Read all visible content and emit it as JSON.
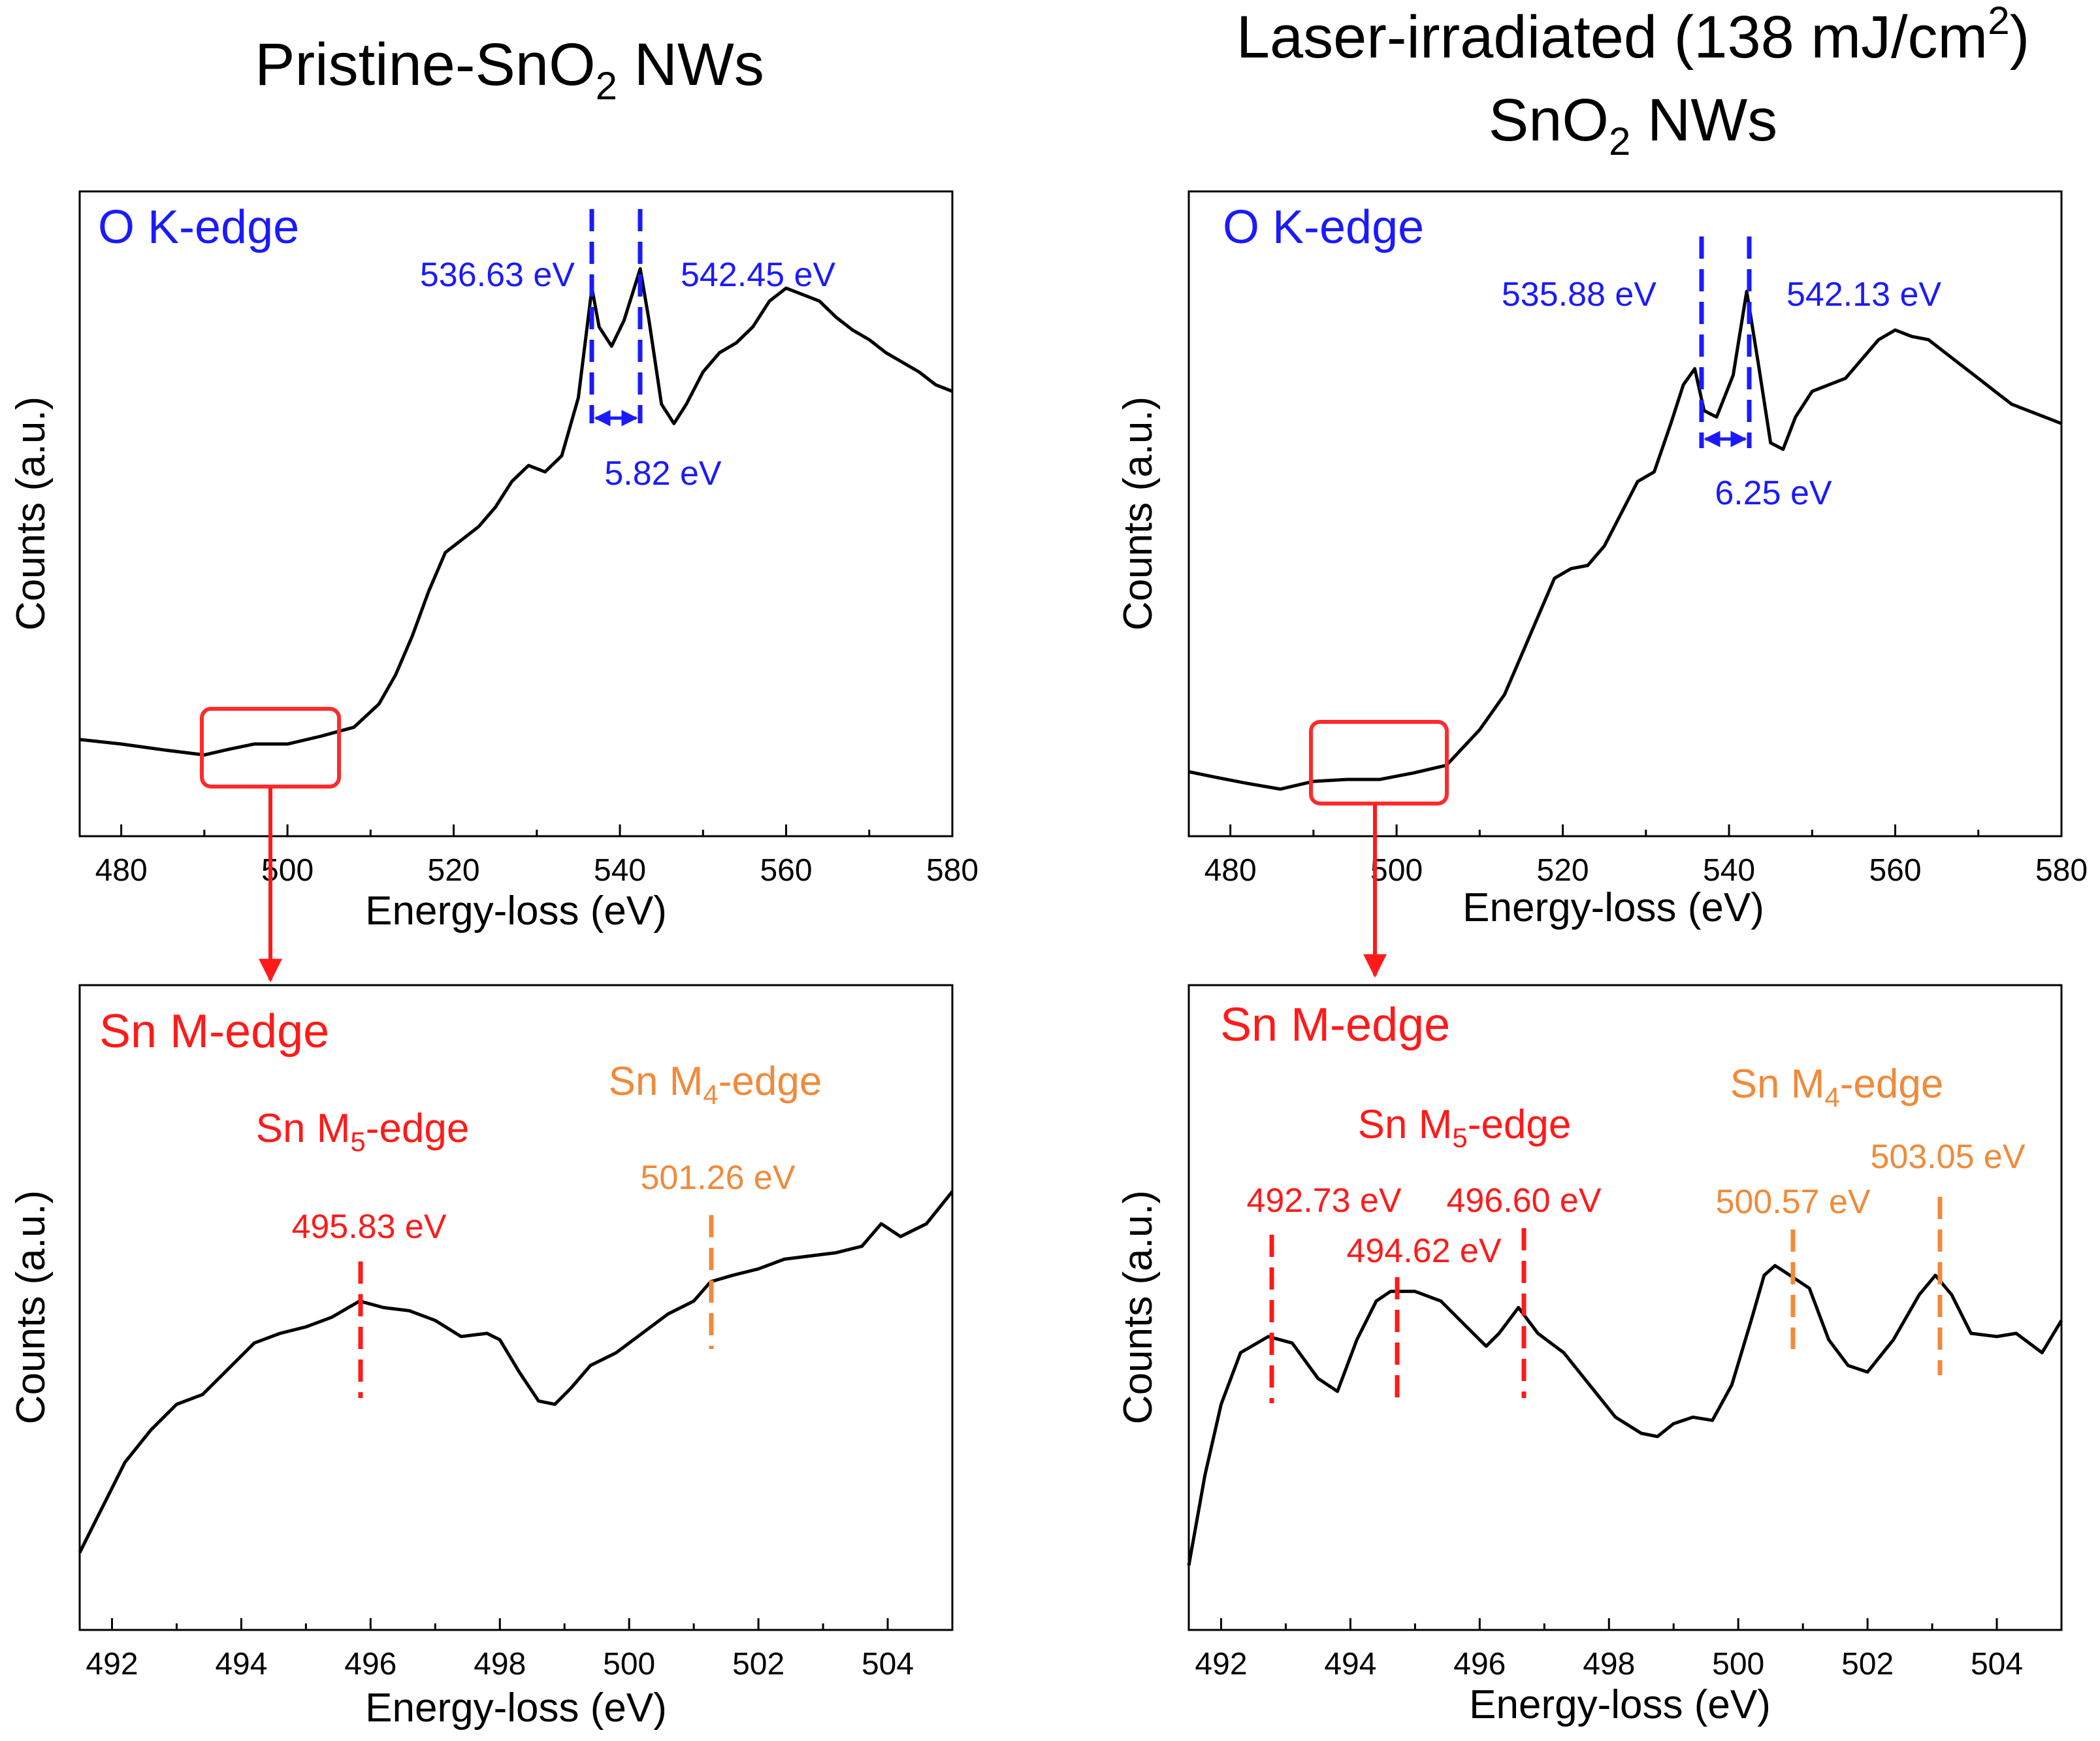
{
  "colors": {
    "blue": "#1a1aff",
    "red": "#ff1a1a",
    "orange": "#f08a3a",
    "box": "#ff2a2a",
    "line": "#000000"
  },
  "panel_titles": {
    "left": {
      "main": "Pristine-SnO",
      "sub": "2",
      "tail": " NWs"
    },
    "right": {
      "line1_main": "Laser-irradiated (138 mJ/cm",
      "line1_sup": "2",
      "line1_tail": ")",
      "line2_main": "SnO",
      "line2_sub": "2",
      "line2_tail": " NWs"
    }
  },
  "chart_data": [
    {
      "id": "tl",
      "type": "line",
      "title": "O K-edge",
      "xlabel": "Energy-loss (eV)",
      "ylabel": "Counts (a.u.)",
      "xlim": [
        475,
        580
      ],
      "ylim": [
        0,
        100
      ],
      "xticks": [
        480,
        500,
        520,
        540,
        560,
        580
      ],
      "series": [
        {
          "name": "Pristine O K-edge",
          "x": [
            475,
            480,
            485,
            490,
            493,
            496,
            500,
            504,
            508,
            511,
            513,
            515,
            517,
            519,
            521,
            523,
            525,
            527,
            529,
            531,
            533,
            535,
            536.63,
            537.5,
            539,
            540.5,
            542.45,
            543.5,
            545,
            546.5,
            548,
            550,
            552,
            554,
            556,
            558,
            560,
            562,
            564,
            566,
            568,
            570,
            572,
            574,
            576,
            578,
            580
          ],
          "y": [
            15,
            14.3,
            13.4,
            12.6,
            13.5,
            14.3,
            14.3,
            15.5,
            16.9,
            20.5,
            25,
            31,
            38,
            44,
            46,
            48,
            51,
            55,
            57.5,
            56.5,
            59,
            68,
            85,
            79,
            76,
            80,
            88,
            80,
            67,
            64,
            67,
            72,
            75,
            76.5,
            79,
            83,
            85,
            84,
            83,
            80.5,
            78.5,
            77,
            75,
            73.5,
            72,
            70,
            69
          ]
        }
      ],
      "annotations": [
        {
          "text": "536.63 eV",
          "x": 536.63,
          "kind": "peak_marker"
        },
        {
          "text": "542.45 eV",
          "x": 542.45,
          "kind": "peak_marker"
        },
        {
          "text": "5.82 eV",
          "kind": "separation",
          "from": 536.63,
          "to": 542.45
        }
      ],
      "highlight_box_x": [
        490,
        506
      ]
    },
    {
      "id": "tr",
      "type": "line",
      "title": "O K-edge",
      "xlabel": "Energy-loss (eV)",
      "ylabel": "Counts (a.u.)",
      "xlim": [
        475,
        580
      ],
      "ylim": [
        0,
        100
      ],
      "xticks": [
        480,
        500,
        520,
        540,
        560,
        580
      ],
      "series": [
        {
          "name": "Laser-irradiated O K-edge",
          "x": [
            475,
            478,
            482,
            486,
            490,
            494,
            498,
            502,
            506,
            510,
            513,
            515,
            517,
            519,
            521,
            523,
            525,
            527,
            529,
            531,
            533,
            534.5,
            535.88,
            537,
            538.5,
            540.5,
            542.13,
            543.5,
            545,
            546.5,
            548,
            550,
            552,
            554,
            556,
            558,
            560,
            562,
            564,
            566,
            568,
            570,
            572,
            574,
            576,
            578,
            580
          ],
          "y": [
            10,
            9.2,
            8.2,
            7.3,
            8.5,
            8.8,
            8.8,
            9.8,
            11,
            16.5,
            22,
            28,
            34,
            40,
            41.5,
            42,
            45,
            50,
            55,
            56.5,
            64,
            70,
            72.5,
            66,
            65,
            71.5,
            84.5,
            73.5,
            61,
            60,
            65,
            69,
            70,
            71,
            74,
            77,
            78.5,
            77.5,
            77,
            75,
            73,
            71,
            69,
            67,
            66,
            65,
            64
          ]
        }
      ],
      "annotations": [
        {
          "text": "535.88 eV",
          "x": 535.88,
          "kind": "peak_marker"
        },
        {
          "text": "542.13 eV",
          "x": 542.13,
          "kind": "peak_marker"
        },
        {
          "text": "6.25 eV",
          "kind": "separation",
          "from": 535.88,
          "to": 542.13
        }
      ],
      "highlight_box_x": [
        489,
        505
      ]
    },
    {
      "id": "bl",
      "type": "line",
      "title": "Sn M-edge",
      "xlabel": "Energy-loss (eV)",
      "ylabel": "Counts (a.u.)",
      "xlim": [
        491.5,
        505
      ],
      "ylim": [
        0,
        100
      ],
      "xticks": [
        492,
        494,
        496,
        498,
        500,
        502,
        504
      ],
      "series": [
        {
          "name": "Pristine Sn M-edge",
          "x": [
            491.5,
            491.8,
            492.2,
            492.6,
            493,
            493.4,
            493.8,
            494.2,
            494.6,
            495,
            495.4,
            495.83,
            496.2,
            496.6,
            497,
            497.4,
            497.8,
            498,
            498.3,
            498.6,
            498.85,
            499.1,
            499.4,
            499.8,
            500.2,
            500.6,
            501,
            501.26,
            501.6,
            502,
            502.4,
            502.8,
            503.2,
            503.6,
            503.9,
            504.2,
            504.6,
            505
          ],
          "y": [
            12,
            18,
            26,
            31,
            35,
            36.5,
            40.5,
            44.5,
            46,
            47,
            48.5,
            51,
            50,
            49.5,
            48,
            45.5,
            46,
            45,
            40,
            35.5,
            35,
            37.5,
            41,
            43,
            46,
            49,
            51,
            54,
            55,
            56,
            57.5,
            58,
            58.5,
            59.5,
            63,
            61,
            63,
            68
          ]
        }
      ],
      "annotations": [
        {
          "text": "495.83 eV",
          "x": 495.83,
          "color": "red"
        },
        {
          "text": "501.26 eV",
          "x": 501.26,
          "color": "orange"
        },
        {
          "text": "Sn M5-edge",
          "color": "red"
        },
        {
          "text": "Sn M4-edge",
          "color": "orange"
        }
      ]
    },
    {
      "id": "br",
      "type": "line",
      "title": "Sn M-edge",
      "xlabel": "Energy-loss (eV)",
      "ylabel": "Counts (a.u.)",
      "xlim": [
        491.5,
        505
      ],
      "ylim": [
        0,
        100
      ],
      "xticks": [
        492,
        494,
        496,
        498,
        500,
        502,
        504
      ],
      "series": [
        {
          "name": "Laser-irradiated Sn M-edge",
          "x": [
            491.5,
            491.75,
            492,
            492.3,
            492.73,
            493.1,
            493.5,
            493.8,
            494.1,
            494.4,
            494.62,
            495,
            495.4,
            495.8,
            496.1,
            496.3,
            496.6,
            496.9,
            497.3,
            497.7,
            498.1,
            498.5,
            498.75,
            499,
            499.3,
            499.6,
            499.9,
            500.2,
            500.4,
            500.57,
            500.8,
            501.1,
            501.4,
            501.7,
            502,
            502.4,
            502.8,
            503.05,
            503.3,
            503.6,
            504,
            504.3,
            504.7,
            505
          ],
          "y": [
            10,
            24,
            35,
            43,
            45.5,
            44.5,
            39,
            37,
            45,
            51,
            52.5,
            52.5,
            51,
            47,
            44,
            46,
            50,
            46,
            43,
            38,
            33,
            30.5,
            30,
            32,
            33,
            32.5,
            38,
            48,
            55,
            56.5,
            55,
            53,
            45,
            41,
            40,
            45,
            52,
            55,
            52,
            46,
            45.5,
            46,
            43,
            48
          ]
        }
      ],
      "annotations": [
        {
          "text": "492.73 eV",
          "x": 492.73,
          "color": "red"
        },
        {
          "text": "494.62 eV",
          "x": 494.62,
          "color": "red"
        },
        {
          "text": "496.60 eV",
          "x": 496.6,
          "color": "red"
        },
        {
          "text": "500.57 eV",
          "x": 500.57,
          "color": "orange"
        },
        {
          "text": "503.05 eV",
          "x": 503.05,
          "color": "orange"
        },
        {
          "text": "Sn M5-edge",
          "color": "red"
        },
        {
          "text": "Sn M4-edge",
          "color": "orange"
        }
      ]
    }
  ],
  "labels": {
    "tl": {
      "edge": "O K-edge",
      "peak1": "536.63 eV",
      "peak2": "542.45 eV",
      "delta": "5.82 eV",
      "xlabel": "Energy-loss (eV)",
      "ylabel": "Counts (a.u.)"
    },
    "tr": {
      "edge": "O K-edge",
      "peak1": "535.88 eV",
      "peak2": "542.13 eV",
      "delta": "6.25 eV",
      "xlabel": "Energy-loss (eV)",
      "ylabel": "Counts (a.u.)"
    },
    "bl": {
      "edge": "Sn M-edge",
      "m5_main": "Sn M",
      "m5_sub": "5",
      "m5_tail": "-edge",
      "m4_main": "Sn M",
      "m4_sub": "4",
      "m4_tail": "-edge",
      "p1": "495.83 eV",
      "p2": "501.26 eV",
      "xlabel": "Energy-loss (eV)",
      "ylabel": "Counts (a.u.)"
    },
    "br": {
      "edge": "Sn M-edge",
      "m5_main": "Sn M",
      "m5_sub": "5",
      "m5_tail": "-edge",
      "m4_main": "Sn M",
      "m4_sub": "4",
      "m4_tail": "-edge",
      "p1": "492.73 eV",
      "p2": "494.62 eV",
      "p3": "496.60 eV",
      "p4": "500.57 eV",
      "p5": "503.05 eV",
      "xlabel": "Energy-loss (eV)",
      "ylabel": "Counts (a.u.)"
    }
  }
}
